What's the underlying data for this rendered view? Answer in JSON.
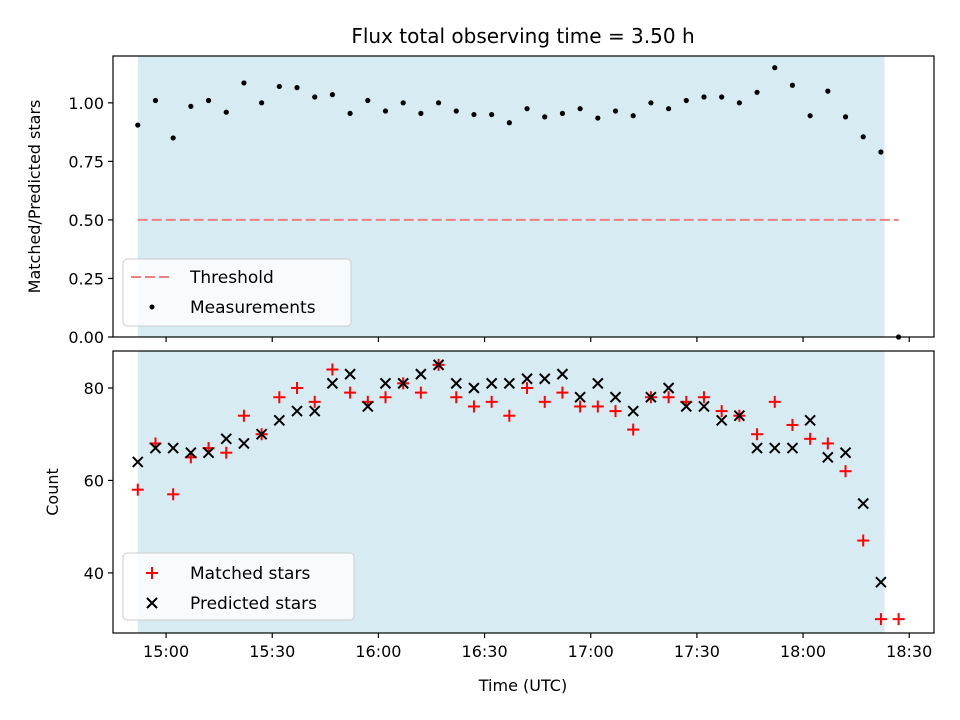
{
  "chart_data": [
    {
      "type": "scatter",
      "title": "Flux total observing time = 3.50 h",
      "ylabel": "Matched/Predicted stars",
      "xlabel": "",
      "ylim": [
        0.0,
        1.2
      ],
      "yticks": [
        "0.00",
        "0.25",
        "0.50",
        "0.75",
        "1.00"
      ],
      "ytick_values": [
        0.0,
        0.25,
        0.5,
        0.75,
        1.0
      ],
      "shaded_region": {
        "start": "14:52",
        "end": "18:23",
        "color": "#add8e6"
      },
      "threshold": {
        "name": "Threshold",
        "value": 0.5,
        "x_start": "14:52",
        "x_end": "18:27",
        "color": "#f08080",
        "style": "dashed"
      },
      "series": [
        {
          "name": "Measurements",
          "color": "#000000",
          "marker": "dot",
          "x": [
            "14:52",
            "14:57",
            "15:02",
            "15:07",
            "15:12",
            "15:17",
            "15:22",
            "15:27",
            "15:32",
            "15:37",
            "15:42",
            "15:47",
            "15:52",
            "15:57",
            "16:02",
            "16:07",
            "16:12",
            "16:17",
            "16:22",
            "16:27",
            "16:32",
            "16:37",
            "16:42",
            "16:47",
            "16:52",
            "16:57",
            "17:02",
            "17:07",
            "17:12",
            "17:17",
            "17:22",
            "17:27",
            "17:32",
            "17:37",
            "17:42",
            "17:47",
            "17:52",
            "17:57",
            "18:02",
            "18:07",
            "18:12",
            "18:17",
            "18:22",
            "18:27"
          ],
          "y": [
            0.905,
            1.01,
            0.85,
            0.985,
            1.01,
            0.96,
            1.085,
            1.0,
            1.07,
            1.065,
            1.025,
            1.035,
            0.955,
            1.01,
            0.965,
            1.0,
            0.955,
            1.0,
            0.965,
            0.95,
            0.95,
            0.915,
            0.975,
            0.94,
            0.955,
            0.975,
            0.935,
            0.965,
            0.945,
            1.0,
            0.975,
            1.01,
            1.025,
            1.025,
            1.0,
            1.045,
            1.15,
            1.075,
            0.945,
            1.05,
            0.94,
            0.855,
            0.79,
            0.0
          ]
        }
      ],
      "legend": {
        "position": "lower-left",
        "entries": [
          "Threshold",
          "Measurements"
        ]
      }
    },
    {
      "type": "scatter",
      "title": "",
      "ylabel": "Count",
      "xlabel": "Time (UTC)",
      "ylim": [
        27,
        88
      ],
      "yticks": [
        "40",
        "60",
        "80"
      ],
      "ytick_values": [
        40,
        60,
        80
      ],
      "xlim": [
        "14:45",
        "18:37"
      ],
      "xticks": [
        "15:00",
        "15:30",
        "16:00",
        "16:30",
        "17:00",
        "17:30",
        "18:00",
        "18:30"
      ],
      "shaded_region": {
        "start": "14:52",
        "end": "18:23",
        "color": "#add8e6"
      },
      "series": [
        {
          "name": "Matched stars",
          "color": "#ff0000",
          "marker": "plus",
          "x": [
            "14:52",
            "14:57",
            "15:02",
            "15:07",
            "15:12",
            "15:17",
            "15:22",
            "15:27",
            "15:32",
            "15:37",
            "15:42",
            "15:47",
            "15:52",
            "15:57",
            "16:02",
            "16:07",
            "16:12",
            "16:17",
            "16:22",
            "16:27",
            "16:32",
            "16:37",
            "16:42",
            "16:47",
            "16:52",
            "16:57",
            "17:02",
            "17:07",
            "17:12",
            "17:17",
            "17:22",
            "17:27",
            "17:32",
            "17:37",
            "17:42",
            "17:47",
            "17:52",
            "17:57",
            "18:02",
            "18:07",
            "18:12",
            "18:17",
            "18:22",
            "18:27"
          ],
          "y": [
            58,
            68,
            57,
            65,
            67,
            66,
            74,
            70,
            78,
            80,
            77,
            84,
            79,
            77,
            78,
            81,
            79,
            85,
            78,
            76,
            77,
            74,
            80,
            77,
            79,
            76,
            76,
            75,
            71,
            78,
            78,
            77,
            78,
            75,
            74,
            70,
            77,
            72,
            69,
            68,
            62,
            47,
            30,
            30
          ]
        },
        {
          "name": "Predicted stars",
          "color": "#000000",
          "marker": "x",
          "x": [
            "14:52",
            "14:57",
            "15:02",
            "15:07",
            "15:12",
            "15:17",
            "15:22",
            "15:27",
            "15:32",
            "15:37",
            "15:42",
            "15:47",
            "15:52",
            "15:57",
            "16:02",
            "16:07",
            "16:12",
            "16:17",
            "16:22",
            "16:27",
            "16:32",
            "16:37",
            "16:42",
            "16:47",
            "16:52",
            "16:57",
            "17:02",
            "17:07",
            "17:12",
            "17:17",
            "17:22",
            "17:27",
            "17:32",
            "17:37",
            "17:42",
            "17:47",
            "17:52",
            "17:57",
            "18:02",
            "18:07",
            "18:12",
            "18:17",
            "18:22"
          ],
          "y": [
            64,
            67,
            67,
            66,
            66,
            69,
            68,
            70,
            73,
            75,
            75,
            81,
            83,
            76,
            81,
            81,
            83,
            85,
            81,
            80,
            81,
            81,
            82,
            82,
            83,
            78,
            81,
            78,
            75,
            78,
            80,
            76,
            76,
            73,
            74,
            67,
            67,
            67,
            73,
            65,
            66,
            55,
            38
          ]
        }
      ],
      "legend": {
        "position": "lower-left",
        "entries": [
          "Matched stars",
          "Predicted stars"
        ]
      }
    }
  ]
}
